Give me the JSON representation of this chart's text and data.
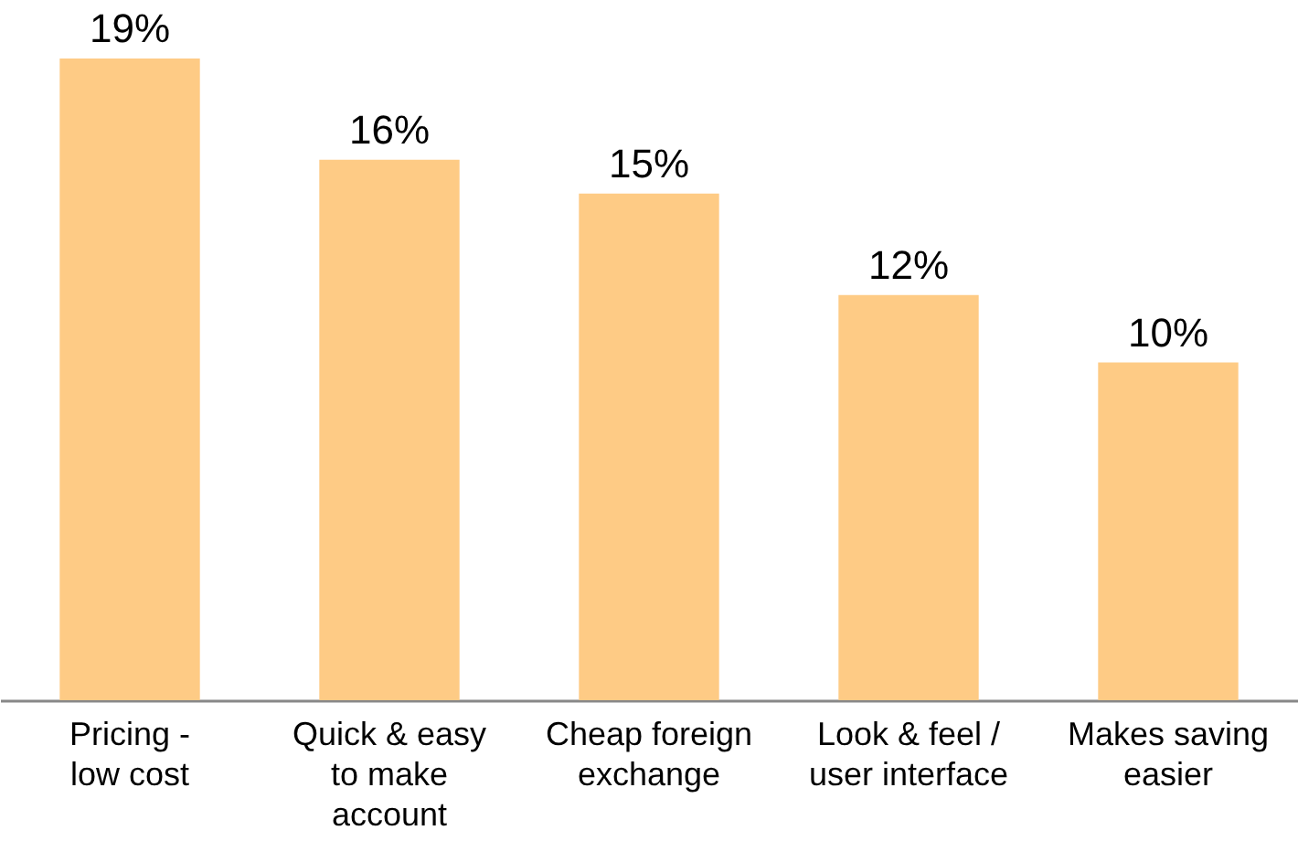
{
  "chart_data": {
    "type": "bar",
    "categories": [
      "Pricing - low cost",
      "Quick & easy to make account",
      "Cheap foreign exchange",
      "Look & feel / user interface",
      "Makes saving easier"
    ],
    "values": [
      19,
      16,
      15,
      12,
      10
    ],
    "value_labels": [
      "19%",
      "16%",
      "15%",
      "12%",
      "10%"
    ],
    "color": "#fecb85"
  }
}
